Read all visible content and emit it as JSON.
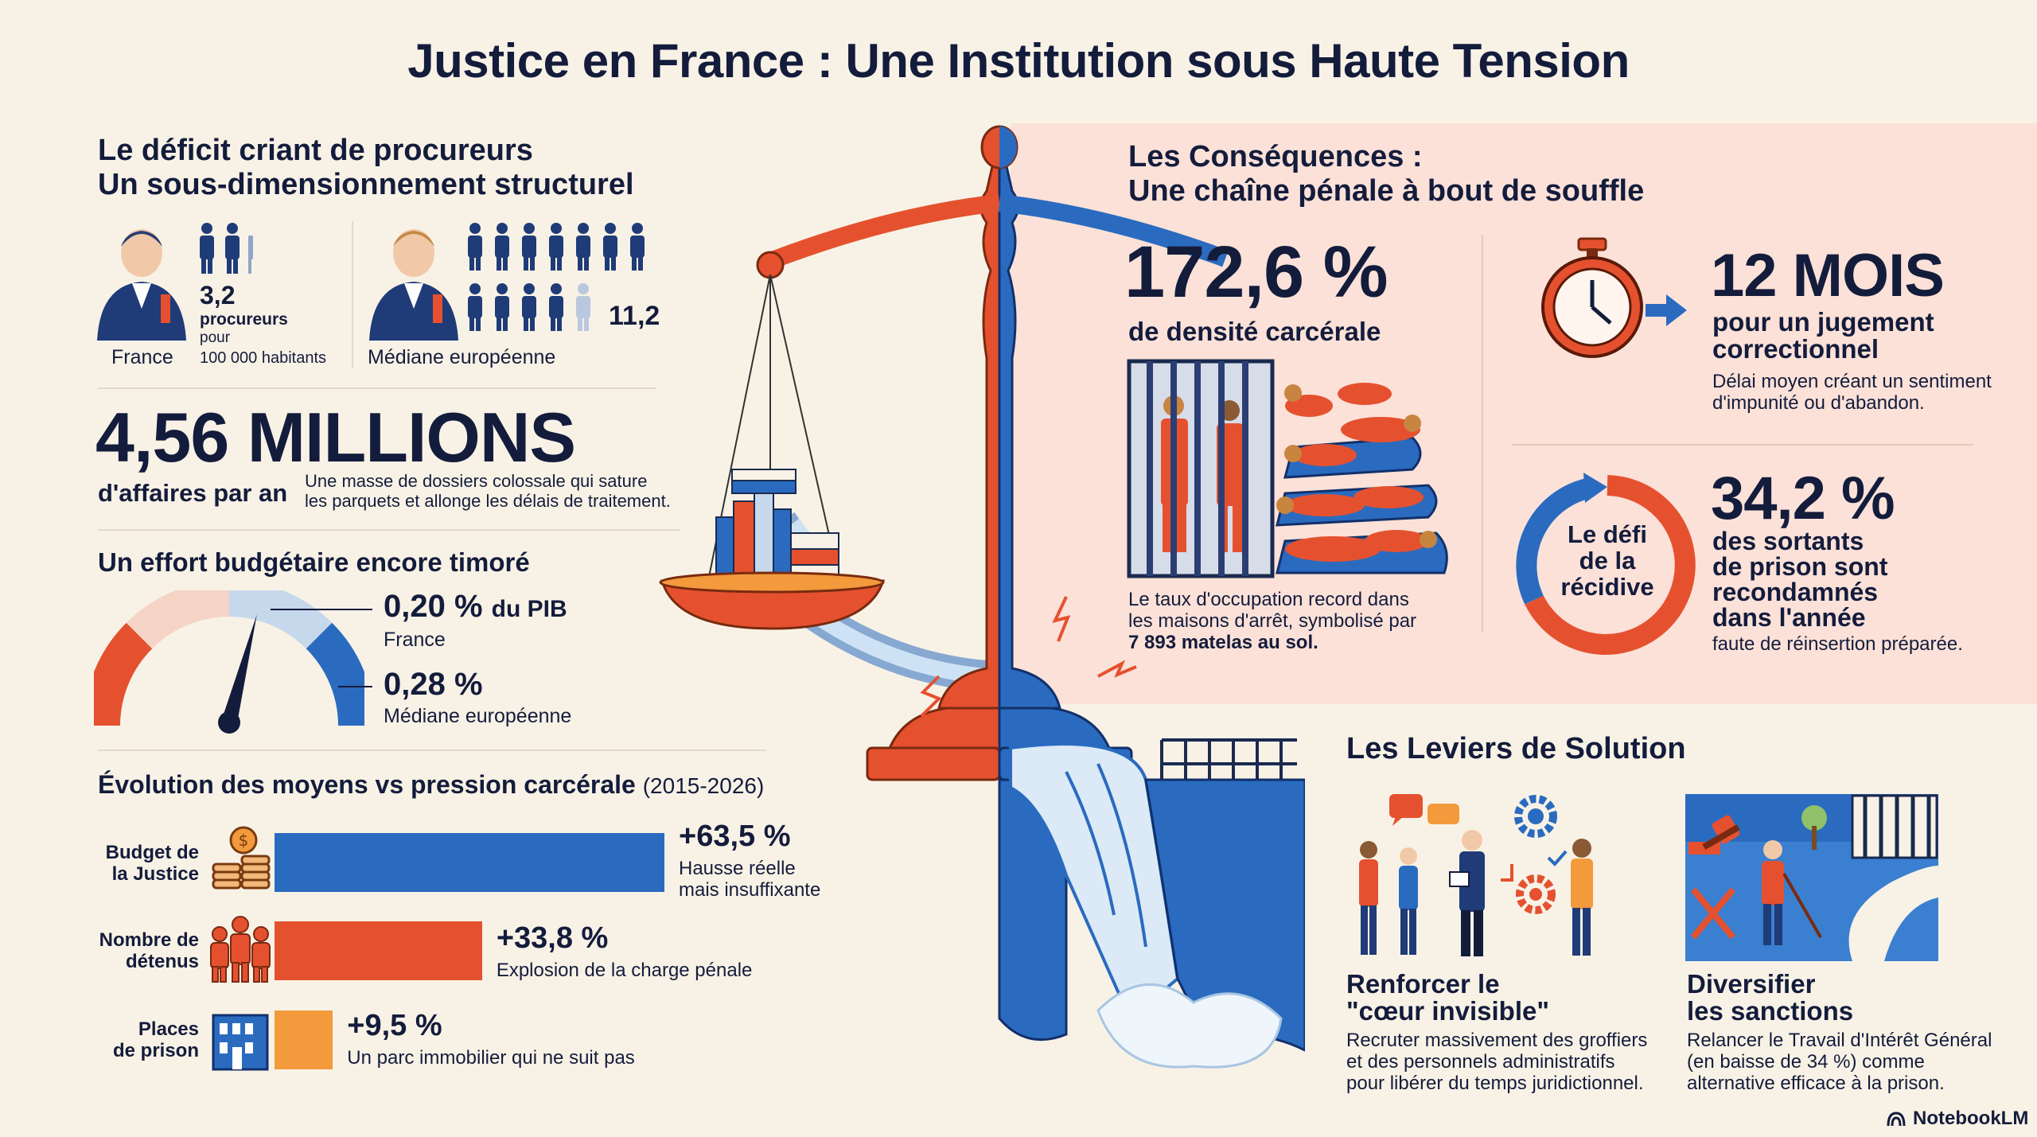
{
  "title": "Justice en France : Une Institution sous Haute Tension",
  "prosecutors": {
    "heading_line1": "Le déficit criant de procureurs",
    "heading_line2": "Un sous-dimensionnement structurel",
    "france_value": "3,2",
    "france_unit1": "procureurs",
    "france_unit2": "pour",
    "france_unit3": "100 000 habitants",
    "france_label": "France",
    "eu_value": "11,2",
    "eu_label": "Médiane européenne"
  },
  "cases": {
    "big": "4,56 MILLIONS",
    "sub": "d'affaires par an",
    "desc1": "Une masse de dossiers colossale qui sature",
    "desc2": "les parquets et allonge les délais de traitement."
  },
  "budget": {
    "heading": "Un effort budgétaire encore timoré",
    "fr_value": "0,20 %",
    "fr_suffix": "du PIB",
    "fr_label": "France",
    "eu_value": "0,28 %",
    "eu_label": "Médiane européenne",
    "gauge_level_fraction": 0.58
  },
  "evolution": {
    "heading": "Évolution des moyens vs pression carcérale",
    "period": "(2015-2026)",
    "rows": [
      {
        "label1": "Budget de",
        "label2": "la Justice",
        "pct": "+63,5 %",
        "value": 63.5,
        "desc1": "Hausse réelle",
        "desc2": "mais insuffixante",
        "color": "#2a6bc0",
        "icon": "coins-icon"
      },
      {
        "label1": "Nombre de",
        "label2": "détenus",
        "pct": "+33,8 %",
        "value": 33.8,
        "desc1": "Explosion de la charge pénale",
        "desc2": "",
        "color": "#e5512f",
        "icon": "people-icon"
      },
      {
        "label1": "Places",
        "label2": "de prison",
        "pct": "+9,5 %",
        "value": 9.5,
        "desc1": "Un parc immobilier qui ne suit pas",
        "desc2": "",
        "color": "#f29a3c",
        "icon": "building-icon"
      }
    ]
  },
  "consequences": {
    "heading_line1": "Les Conséquences :",
    "heading_line2": "Une chaîne pénale à bout de souffle",
    "density_value": "172,6 %",
    "density_label": "de densité carcérale",
    "density_desc1": "Le taux d'occupation record dans",
    "density_desc2": "les maisons d'arrêt, symbolisé par",
    "density_desc3": "7 893 matelas au sol.",
    "delay_value": "12 MOIS",
    "delay_label1": "pour un jugement",
    "delay_label2": "correctionnel",
    "delay_desc1": "Délai moyen créant un sentiment",
    "delay_desc2": "d'impunité ou d'abandon.",
    "recid_circle1": "Le défi",
    "recid_circle2": "de la",
    "recid_circle3": "récidive",
    "recid_value": "34,2 %",
    "recid_label1": "des sortants",
    "recid_label2": "de prison sont",
    "recid_label3": "recondamnés",
    "recid_label4": "dans l'année",
    "recid_desc": "faute de réinsertion préparée."
  },
  "solutions": {
    "heading": "Les Leviers de Solution",
    "s1_title1": "Renforcer le",
    "s1_title2": "\"cœur invisible\"",
    "s1_desc1": "Recruter massivement des groffiers",
    "s1_desc2": "et des personnels administratifs",
    "s1_desc3": "pour libérer du temps juridictionnel.",
    "s2_title1": "Diversifier",
    "s2_title2": "les sanctions",
    "s2_desc1": "Relancer le Travail d'Intérêt Général",
    "s2_desc2": "(en baisse de 34 %) comme",
    "s2_desc3": "alternative efficace à la prison."
  },
  "brand": "NotebookLM",
  "colors": {
    "navy": "#141c3c",
    "red": "#e5512f",
    "blue": "#2a6bc0",
    "orange": "#f29a3c",
    "cream": "#f8f2e6",
    "pink": "#fbe1d8"
  }
}
